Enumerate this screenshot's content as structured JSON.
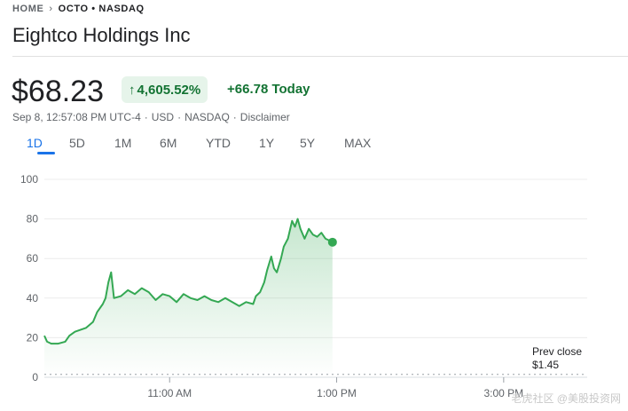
{
  "breadcrumb": {
    "home": "HOME",
    "ticker": "OCTO • NASDAQ"
  },
  "company": {
    "name": "Eightco Holdings Inc"
  },
  "quote": {
    "price": "$68.23",
    "change_percent": "4,605.52%",
    "change_today": "+66.78 Today",
    "timestamp": "Sep 8, 12:57:08 PM UTC-4",
    "currency": "USD",
    "exchange": "NASDAQ",
    "disclaimer": "Disclaimer",
    "sep": "·"
  },
  "tabs": [
    "1D",
    "5D",
    "1M",
    "6M",
    "YTD",
    "1Y",
    "5Y",
    "MAX"
  ],
  "active_tab": "1D",
  "colors": {
    "up": "#137333",
    "line": "#34a853",
    "accent": "#1a73e8"
  },
  "chart_data": {
    "type": "area",
    "y_ticks": [
      "100",
      "80",
      "60",
      "40",
      "20",
      "0"
    ],
    "ylim": [
      0,
      100
    ],
    "x_ticks": [
      "11:00 AM",
      "1:00 PM",
      "3:00 PM"
    ],
    "prev_close": {
      "label": "Prev close",
      "value": "$1.45",
      "y": 1.45
    },
    "x_time_ticks": [
      {
        "label": "11:00 AM",
        "t": "11:00"
      },
      {
        "label": "1:00 PM",
        "t": "13:00"
      },
      {
        "label": "3:00 PM",
        "t": "15:00"
      }
    ],
    "series": [
      {
        "points": [
          [
            "09:30",
            21
          ],
          [
            "09:32",
            18
          ],
          [
            "09:35",
            17
          ],
          [
            "09:40",
            17
          ],
          [
            "09:45",
            18
          ],
          [
            "09:48",
            21
          ],
          [
            "09:52",
            23
          ],
          [
            "10:00",
            25
          ],
          [
            "10:05",
            28
          ],
          [
            "10:08",
            33
          ],
          [
            "10:12",
            37
          ],
          [
            "10:14",
            40
          ],
          [
            "10:16",
            48
          ],
          [
            "10:18",
            53
          ],
          [
            "10:20",
            40
          ],
          [
            "10:25",
            41
          ],
          [
            "10:30",
            44
          ],
          [
            "10:35",
            42
          ],
          [
            "10:40",
            45
          ],
          [
            "10:45",
            43
          ],
          [
            "10:50",
            39
          ],
          [
            "10:55",
            42
          ],
          [
            "11:00",
            41
          ],
          [
            "11:05",
            38
          ],
          [
            "11:10",
            42
          ],
          [
            "11:15",
            40
          ],
          [
            "11:20",
            39
          ],
          [
            "11:25",
            41
          ],
          [
            "11:30",
            39
          ],
          [
            "11:35",
            38
          ],
          [
            "11:40",
            40
          ],
          [
            "11:45",
            38
          ],
          [
            "11:50",
            36
          ],
          [
            "11:55",
            38
          ],
          [
            "12:00",
            37
          ],
          [
            "12:02",
            41
          ],
          [
            "12:05",
            43
          ],
          [
            "12:08",
            48
          ],
          [
            "12:10",
            54
          ],
          [
            "12:13",
            61
          ],
          [
            "12:15",
            55
          ],
          [
            "12:17",
            53
          ],
          [
            "12:20",
            60
          ],
          [
            "12:22",
            66
          ],
          [
            "12:25",
            70
          ],
          [
            "12:28",
            79
          ],
          [
            "12:30",
            76
          ],
          [
            "12:32",
            80
          ],
          [
            "12:34",
            75
          ],
          [
            "12:37",
            70
          ],
          [
            "12:40",
            75
          ],
          [
            "12:43",
            72
          ],
          [
            "12:46",
            71
          ],
          [
            "12:49",
            73
          ],
          [
            "12:52",
            70
          ],
          [
            "12:55",
            69
          ],
          [
            "12:57",
            68.23
          ]
        ]
      }
    ]
  },
  "watermark": "老虎社区 @美股投资网"
}
